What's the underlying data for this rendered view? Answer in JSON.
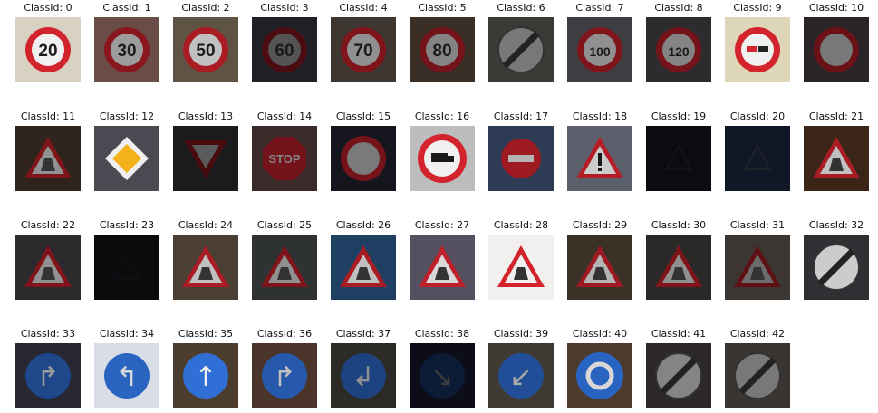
{
  "figure": {
    "title_prefix": "ClassId: ",
    "columns": 11,
    "cells": [
      {
        "class_id": "0",
        "title": "ClassId: 0",
        "icon": "speed-limit-20-sign",
        "kind": "speed",
        "text": "20",
        "bg": "#d9d2c3",
        "brightness": 1.0
      },
      {
        "class_id": "1",
        "title": "ClassId: 1",
        "icon": "speed-limit-30-sign",
        "kind": "speed",
        "text": "30",
        "bg": "#6a4d47",
        "brightness": 0.65
      },
      {
        "class_id": "2",
        "title": "ClassId: 2",
        "icon": "speed-limit-50-sign",
        "kind": "speed",
        "text": "50",
        "bg": "#5f5444",
        "brightness": 0.8
      },
      {
        "class_id": "3",
        "title": "ClassId: 3",
        "icon": "speed-limit-60-sign",
        "kind": "speed",
        "text": "60",
        "bg": "#202027",
        "brightness": 0.35
      },
      {
        "class_id": "4",
        "title": "ClassId: 4",
        "icon": "speed-limit-70-sign",
        "kind": "speed",
        "text": "70",
        "bg": "#3e3631",
        "brightness": 0.6
      },
      {
        "class_id": "5",
        "title": "ClassId: 5",
        "icon": "speed-limit-80-sign",
        "kind": "speed",
        "text": "80",
        "bg": "#3a2f26",
        "brightness": 0.55
      },
      {
        "class_id": "6",
        "title": "ClassId: 6",
        "icon": "end-speed-limit-sign",
        "kind": "end",
        "text": "",
        "bg": "#3b3a36",
        "brightness": 0.5
      },
      {
        "class_id": "7",
        "title": "ClassId: 7",
        "icon": "speed-limit-100-sign",
        "kind": "speed",
        "text": "100",
        "bg": "#3d3d42",
        "brightness": 0.6
      },
      {
        "class_id": "8",
        "title": "ClassId: 8",
        "icon": "speed-limit-120-sign",
        "kind": "speed",
        "text": "120",
        "bg": "#2c2b2d",
        "brightness": 0.55
      },
      {
        "class_id": "9",
        "title": "ClassId: 9",
        "icon": "no-overtaking-sign",
        "kind": "nopass",
        "text": "",
        "bg": "#ddd6b8",
        "brightness": 1.0
      },
      {
        "class_id": "10",
        "title": "ClassId: 10",
        "icon": "no-overtaking-trucks-sign",
        "kind": "ring",
        "text": "",
        "bg": "#2a2429",
        "brightness": 0.5
      },
      {
        "class_id": "11",
        "title": "ClassId: 11",
        "icon": "right-of-way-sign",
        "kind": "triangle",
        "text": "",
        "bg": "#2e241c",
        "brightness": 0.6
      },
      {
        "class_id": "12",
        "title": "ClassId: 12",
        "icon": "priority-road-sign",
        "kind": "diamond",
        "text": "",
        "bg": "#4a4a52",
        "brightness": 1.0
      },
      {
        "class_id": "13",
        "title": "ClassId: 13",
        "icon": "yield-sign",
        "kind": "yield",
        "text": "",
        "bg": "#1b1b1d",
        "brightness": 0.4
      },
      {
        "class_id": "14",
        "title": "ClassId: 14",
        "icon": "stop-sign",
        "kind": "stop",
        "text": "STOP",
        "bg": "#3a2a2a",
        "brightness": 0.55
      },
      {
        "class_id": "15",
        "title": "ClassId: 15",
        "icon": "no-vehicles-sign",
        "kind": "novehicle",
        "text": "",
        "bg": "#15161d",
        "brightness": 0.55
      },
      {
        "class_id": "16",
        "title": "ClassId: 16",
        "icon": "no-trucks-sign",
        "kind": "truck",
        "text": "",
        "bg": "#bdbdbd",
        "brightness": 1.0
      },
      {
        "class_id": "17",
        "title": "ClassId: 17",
        "icon": "no-entry-sign",
        "kind": "noentry",
        "text": "",
        "bg": "#2d3b55",
        "brightness": 0.75
      },
      {
        "class_id": "18",
        "title": "ClassId: 18",
        "icon": "general-caution-sign",
        "kind": "caution",
        "text": "",
        "bg": "#5b5f6b",
        "brightness": 0.85
      },
      {
        "class_id": "19",
        "title": "ClassId: 19",
        "icon": "dangerous-curve-left-sign",
        "kind": "dark",
        "text": "",
        "bg": "#0b0b10",
        "brightness": 0.15
      },
      {
        "class_id": "20",
        "title": "ClassId: 20",
        "icon": "dangerous-curve-right-sign",
        "kind": "dark",
        "text": "",
        "bg": "#101726",
        "brightness": 0.25
      },
      {
        "class_id": "21",
        "title": "ClassId: 21",
        "icon": "double-curve-sign",
        "kind": "triangle",
        "text": "",
        "bg": "#3a2516",
        "brightness": 0.8
      },
      {
        "class_id": "22",
        "title": "ClassId: 22",
        "icon": "bumpy-road-sign",
        "kind": "triangle",
        "text": "",
        "bg": "#2c2a2c",
        "brightness": 0.6
      },
      {
        "class_id": "23",
        "title": "ClassId: 23",
        "icon": "slippery-road-sign",
        "kind": "dark",
        "text": "",
        "bg": "#0b0a0d",
        "brightness": 0.12
      },
      {
        "class_id": "24",
        "title": "ClassId: 24",
        "icon": "road-narrows-sign",
        "kind": "triangle",
        "text": "",
        "bg": "#4b3f34",
        "brightness": 0.8
      },
      {
        "class_id": "25",
        "title": "ClassId: 25",
        "icon": "road-work-sign",
        "kind": "triangle",
        "text": "",
        "bg": "#2f3233",
        "brightness": 0.6
      },
      {
        "class_id": "26",
        "title": "ClassId: 26",
        "icon": "traffic-signals-sign",
        "kind": "triangle",
        "text": "",
        "bg": "#1f3f63",
        "brightness": 0.8
      },
      {
        "class_id": "27",
        "title": "ClassId: 27",
        "icon": "pedestrians-sign",
        "kind": "triangle",
        "text": "",
        "bg": "#555060",
        "brightness": 0.9
      },
      {
        "class_id": "28",
        "title": "ClassId: 28",
        "icon": "children-crossing-sign",
        "kind": "triangle",
        "text": "",
        "bg": "#f2f0ee",
        "brightness": 1.0
      },
      {
        "class_id": "29",
        "title": "ClassId: 29",
        "icon": "bicycles-crossing-sign",
        "kind": "triangle",
        "text": "",
        "bg": "#3c3126",
        "brightness": 0.75
      },
      {
        "class_id": "30",
        "title": "ClassId: 30",
        "icon": "ice-snow-sign",
        "kind": "triangle",
        "text": "",
        "bg": "#2b2828",
        "brightness": 0.6
      },
      {
        "class_id": "31",
        "title": "ClassId: 31",
        "icon": "wild-animals-crossing-sign",
        "kind": "triangle",
        "text": "",
        "bg": "#3b3631",
        "brightness": 0.45
      },
      {
        "class_id": "32",
        "title": "ClassId: 32",
        "icon": "end-all-limits-sign",
        "kind": "endall",
        "text": "",
        "bg": "#2f3034",
        "brightness": 0.85
      },
      {
        "class_id": "33",
        "title": "ClassId: 33",
        "icon": "turn-right-ahead-sign",
        "kind": "blue",
        "text": "↱",
        "bg": "#282731",
        "brightness": 0.65
      },
      {
        "class_id": "34",
        "title": "ClassId: 34",
        "icon": "turn-left-ahead-sign",
        "kind": "blue",
        "text": "↰",
        "bg": "#d8dde7",
        "brightness": 0.9
      },
      {
        "class_id": "35",
        "title": "ClassId: 35",
        "icon": "ahead-only-sign",
        "kind": "blue",
        "text": "↑",
        "bg": "#4d3d2e",
        "brightness": 1.0
      },
      {
        "class_id": "36",
        "title": "ClassId: 36",
        "icon": "go-straight-or-right-sign",
        "kind": "blue",
        "text": "↱",
        "bg": "#4b352a",
        "brightness": 0.8
      },
      {
        "class_id": "37",
        "title": "ClassId: 37",
        "icon": "go-straight-or-left-sign",
        "kind": "blue",
        "text": "↲",
        "bg": "#2d2b25",
        "brightness": 0.6
      },
      {
        "class_id": "38",
        "title": "ClassId: 38",
        "icon": "keep-right-sign",
        "kind": "blue",
        "text": "↘",
        "bg": "#0c0d18",
        "brightness": 0.25
      },
      {
        "class_id": "39",
        "title": "ClassId: 39",
        "icon": "keep-left-sign",
        "kind": "blue",
        "text": "↙",
        "bg": "#3e3a33",
        "brightness": 0.7
      },
      {
        "class_id": "40",
        "title": "ClassId: 40",
        "icon": "roundabout-mandatory-sign",
        "kind": "roundabout",
        "text": "",
        "bg": "#4e3a2c",
        "brightness": 0.9
      },
      {
        "class_id": "41",
        "title": "ClassId: 41",
        "icon": "end-of-no-passing-sign",
        "kind": "endall",
        "text": "",
        "bg": "#2c2827",
        "brightness": 0.55
      },
      {
        "class_id": "42",
        "title": "ClassId: 42",
        "icon": "end-no-passing-trucks-sign",
        "kind": "endall",
        "text": "",
        "bg": "#3a3532",
        "brightness": 0.5
      }
    ]
  }
}
